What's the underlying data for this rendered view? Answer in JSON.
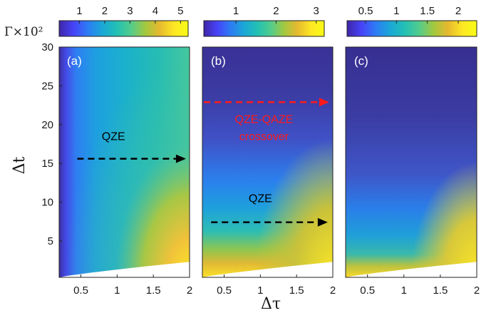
{
  "colorbar_label": "Γ×10²",
  "colormap": [
    "#3e26a8",
    "#4743f8",
    "#2c7cf4",
    "#1ba7d6",
    "#22c0b5",
    "#52cc8c",
    "#a2c840",
    "#e6b92f",
    "#fde725",
    "#f9fb15"
  ],
  "chart_data": [
    {
      "type": "heatmap",
      "panel_label": "(a)",
      "xlabel": "",
      "ylabel": "Δt",
      "xlim": [
        0.2,
        2.0
      ],
      "ylim": [
        0.3,
        30
      ],
      "xticks": [
        "0.5",
        "1",
        "1.5",
        "2"
      ],
      "yticks": [
        "5",
        "10",
        "15",
        "20",
        "25",
        "30"
      ],
      "colorbar": {
        "range": [
          0.2,
          5.3
        ],
        "ticks": [
          "1",
          "2",
          "3",
          "4",
          "5"
        ]
      },
      "annotations": [
        {
          "text": "QZE",
          "color": "#000000",
          "arrow_from": [
            0.45,
            15.6
          ],
          "arrow_to": [
            1.95,
            15.6
          ],
          "text_at": [
            0.95,
            18.0
          ]
        }
      ]
    },
    {
      "type": "heatmap",
      "panel_label": "(b)",
      "xlabel": "Δτ",
      "ylabel": "",
      "xlim": [
        0.2,
        2.0
      ],
      "ylim": [
        0.3,
        30
      ],
      "xticks": [
        "0.5",
        "1",
        "1.5",
        "2"
      ],
      "yticks": [],
      "colorbar": {
        "range": [
          0.2,
          3.2
        ],
        "ticks": [
          "1",
          "2",
          "3"
        ]
      },
      "annotations": [
        {
          "text": "QZE-QAZE",
          "color": "#ff1a1a",
          "text_at": [
            1.05,
            20.2
          ]
        },
        {
          "text": "crossover",
          "color": "#ff1a1a",
          "text_at": [
            1.05,
            18.0
          ]
        },
        {
          "text": "QZE",
          "color": "#000000",
          "arrow_from": [
            0.32,
            7.4
          ],
          "arrow_to": [
            1.93,
            7.4
          ],
          "text_at": [
            1.0,
            10.0
          ]
        },
        {
          "arrow_color": "#ff1a1a",
          "arrow_from": [
            0.22,
            22.9
          ],
          "arrow_to": [
            1.95,
            22.9
          ]
        }
      ]
    },
    {
      "type": "heatmap",
      "panel_label": "(c)",
      "xlabel": "",
      "ylabel": "",
      "xlim": [
        0.2,
        2.0
      ],
      "ylim": [
        0.3,
        30
      ],
      "xticks": [
        "0.5",
        "1",
        "1.5",
        "2"
      ],
      "yticks": [],
      "colorbar": {
        "range": [
          0.2,
          2.3
        ],
        "ticks": [
          "0.5",
          "1",
          "1.5",
          "2"
        ]
      },
      "annotations": []
    }
  ]
}
